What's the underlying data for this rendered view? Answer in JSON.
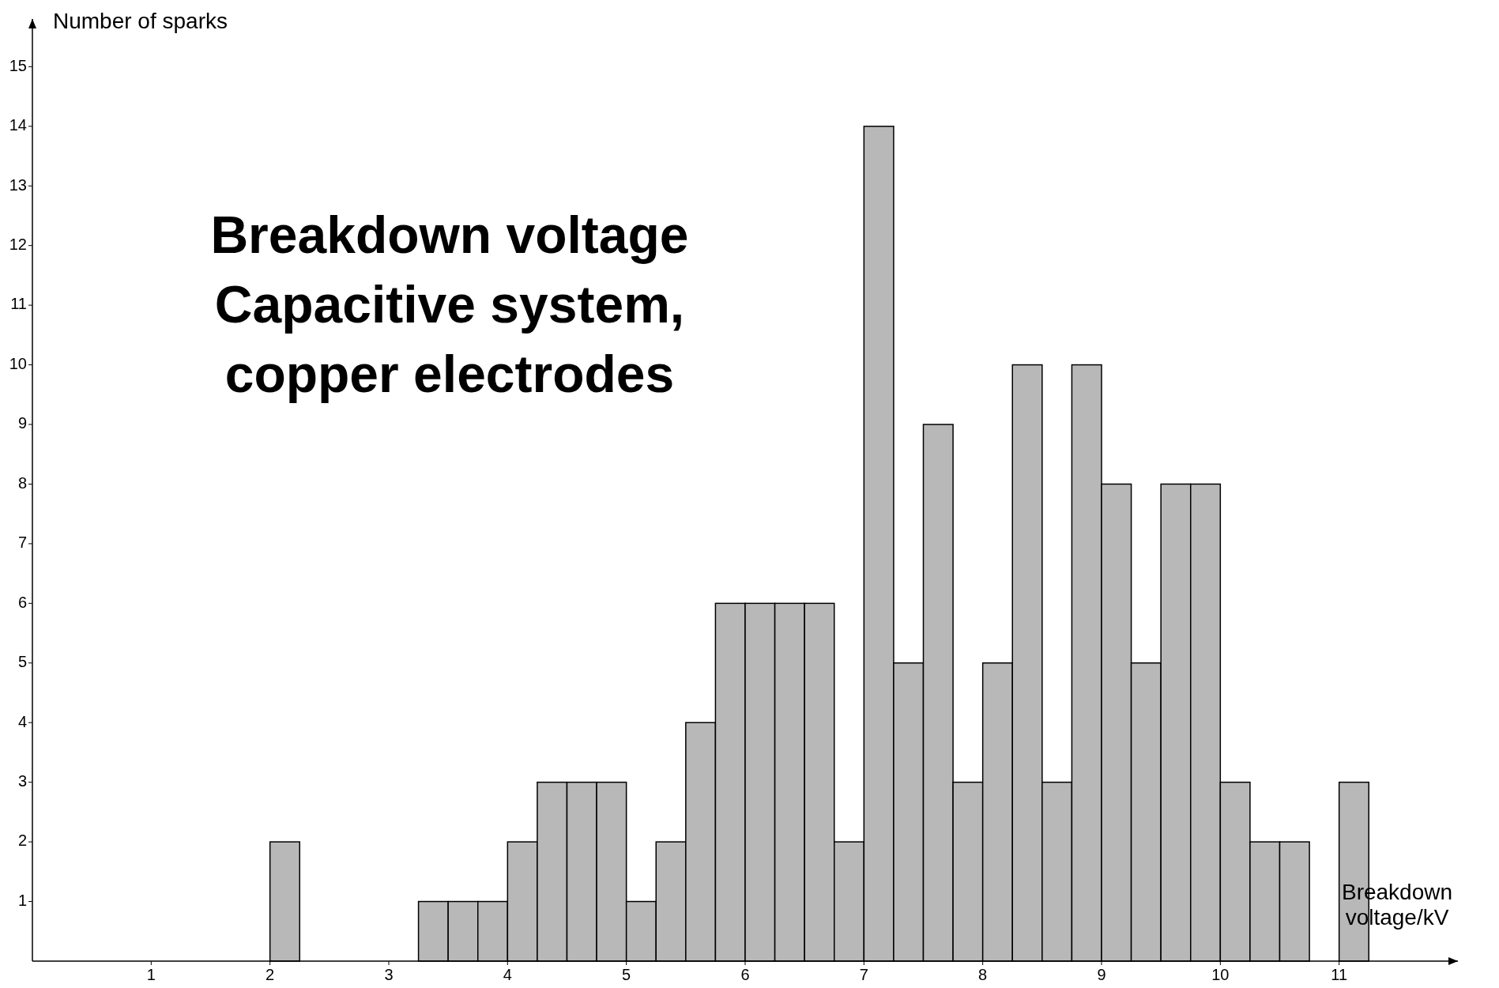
{
  "chart_data": {
    "type": "histogram",
    "title": "Breakdown voltage",
    "subtitle": "Capacitive system, copper electrodes",
    "xlabel": "Breakdown voltage/kV",
    "ylabel": "Number of sparks",
    "bins": [
      2,
      2.25,
      2.5,
      2.75,
      3,
      3.25,
      3.5,
      3.75,
      4,
      4.25,
      4.5,
      4.75,
      5,
      5.25,
      5.5,
      5.75,
      6,
      6.25,
      6.5,
      6.75,
      7,
      7.25,
      7.5,
      7.75,
      8,
      8.25,
      8.5,
      8.75,
      9,
      9.25,
      9.5,
      9.75,
      10,
      10.25,
      10.5,
      10.75,
      11,
      11.25
    ],
    "values": [
      2,
      0,
      0,
      0,
      0,
      1,
      1,
      1,
      2,
      3,
      3,
      3,
      1,
      2,
      4,
      6,
      6,
      6,
      6,
      2,
      14,
      5,
      9,
      3,
      5,
      10,
      3,
      10,
      8,
      5,
      8,
      8,
      3,
      2,
      2,
      0,
      3
    ],
    "color": "#b8b8b8",
    "xlim": [
      0,
      12
    ],
    "ylim": [
      0,
      15.8
    ],
    "xticks": [
      1,
      2,
      3,
      4,
      5,
      6,
      7,
      8,
      9,
      10,
      11
    ],
    "yticks": [
      1,
      2,
      3,
      4,
      5,
      6,
      7,
      8,
      9,
      10,
      11,
      12,
      13,
      14,
      15
    ],
    "grid": false
  }
}
